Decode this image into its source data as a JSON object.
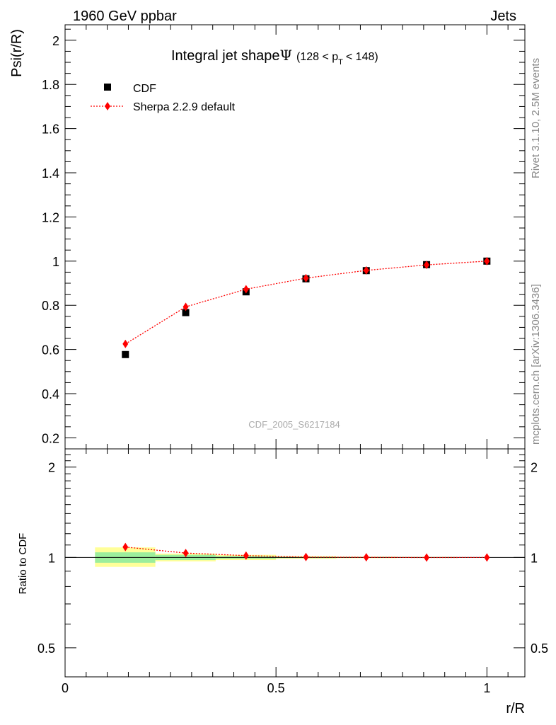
{
  "header": {
    "left": "1960 GeV ppbar",
    "right": "Jets"
  },
  "sidebar": {
    "rivet": "Rivet 3.1.10,  2.5M events",
    "mcplots": "mcplots.cern.ch [arXiv:1306.3436]"
  },
  "watermark": "CDF_2005_S6217184",
  "chart_data": {
    "type": "scatter",
    "title": "Integral jet shapeΨ (128 < p_T < 148)",
    "title_main": "Integral jet shape",
    "title_symbol": "Ψ",
    "title_range": "(128 < p",
    "title_sub": "T",
    "title_end": "< 148)",
    "xlabel": "r/R",
    "ylabel": "Psi(r/R)",
    "ratio_ylabel": "Ratio to CDF",
    "xlim": [
      0,
      1.09
    ],
    "ylim": [
      0.15,
      2.07
    ],
    "ratio_ylim": [
      0.4,
      2.3
    ],
    "x_ticks": [
      {
        "v": 0,
        "label": "0"
      },
      {
        "v": 0.5,
        "label": "0.5"
      },
      {
        "v": 1,
        "label": "1"
      }
    ],
    "y_ticks": [
      {
        "v": 0.2,
        "label": "0.2"
      },
      {
        "v": 0.4,
        "label": "0.4"
      },
      {
        "v": 0.6,
        "label": "0.6"
      },
      {
        "v": 0.8,
        "label": "0.8"
      },
      {
        "v": 1.0,
        "label": "1"
      },
      {
        "v": 1.2,
        "label": "1.2"
      },
      {
        "v": 1.4,
        "label": "1.4"
      },
      {
        "v": 1.6,
        "label": "1.6"
      },
      {
        "v": 1.8,
        "label": "1.8"
      },
      {
        "v": 2.0,
        "label": "2"
      }
    ],
    "ratio_ticks": [
      {
        "v": 0.5,
        "label": "0.5"
      },
      {
        "v": 1,
        "label": "1"
      },
      {
        "v": 2,
        "label": "2"
      }
    ],
    "legend": [
      {
        "name": "CDF",
        "marker": "square",
        "color": "#000000"
      },
      {
        "name": "Sherpa 2.2.9 default",
        "marker": "diamond",
        "color": "#ff0000"
      }
    ],
    "series": [
      {
        "name": "CDF",
        "color": "#000000",
        "x": [
          0.143,
          0.286,
          0.429,
          0.571,
          0.714,
          0.857,
          1.0
        ],
        "values": [
          0.577,
          0.767,
          0.861,
          0.92,
          0.957,
          0.984,
          1.0
        ]
      },
      {
        "name": "Sherpa 2.2.9 default",
        "color": "#ff0000",
        "x": [
          0.143,
          0.286,
          0.429,
          0.571,
          0.714,
          0.857,
          1.0
        ],
        "values": [
          0.625,
          0.793,
          0.873,
          0.923,
          0.958,
          0.983,
          1.0
        ]
      }
    ],
    "ratio": {
      "x": [
        0.143,
        0.286,
        0.429,
        0.571,
        0.714,
        0.857,
        1.0
      ],
      "values": [
        1.083,
        1.034,
        1.014,
        1.003,
        1.001,
        0.999,
        1.0
      ]
    },
    "bands": [
      {
        "x0": 0.071,
        "x1": 0.214,
        "green": [
          0.96,
          1.04
        ],
        "yellow": [
          0.93,
          1.08
        ]
      },
      {
        "x0": 0.214,
        "x1": 0.357,
        "green": [
          0.98,
          1.02
        ],
        "yellow": [
          0.97,
          1.03
        ]
      },
      {
        "x0": 0.357,
        "x1": 0.5,
        "green": [
          0.99,
          1.01
        ],
        "yellow": [
          0.98,
          1.02
        ]
      },
      {
        "x0": 0.5,
        "x1": 0.643,
        "green": [
          0.995,
          1.005
        ],
        "yellow": [
          0.99,
          1.01
        ]
      },
      {
        "x0": 0.643,
        "x1": 0.786,
        "green": [
          0.997,
          1.003
        ],
        "yellow": [
          0.994,
          1.006
        ]
      },
      {
        "x0": 0.786,
        "x1": 0.929,
        "green": [
          0.998,
          1.002
        ],
        "yellow": [
          0.996,
          1.004
        ]
      }
    ],
    "colors": {
      "band_green": "#9cee9c",
      "band_yellow": "#ffff99",
      "mc": "#ff0000",
      "data": "#000000"
    }
  }
}
